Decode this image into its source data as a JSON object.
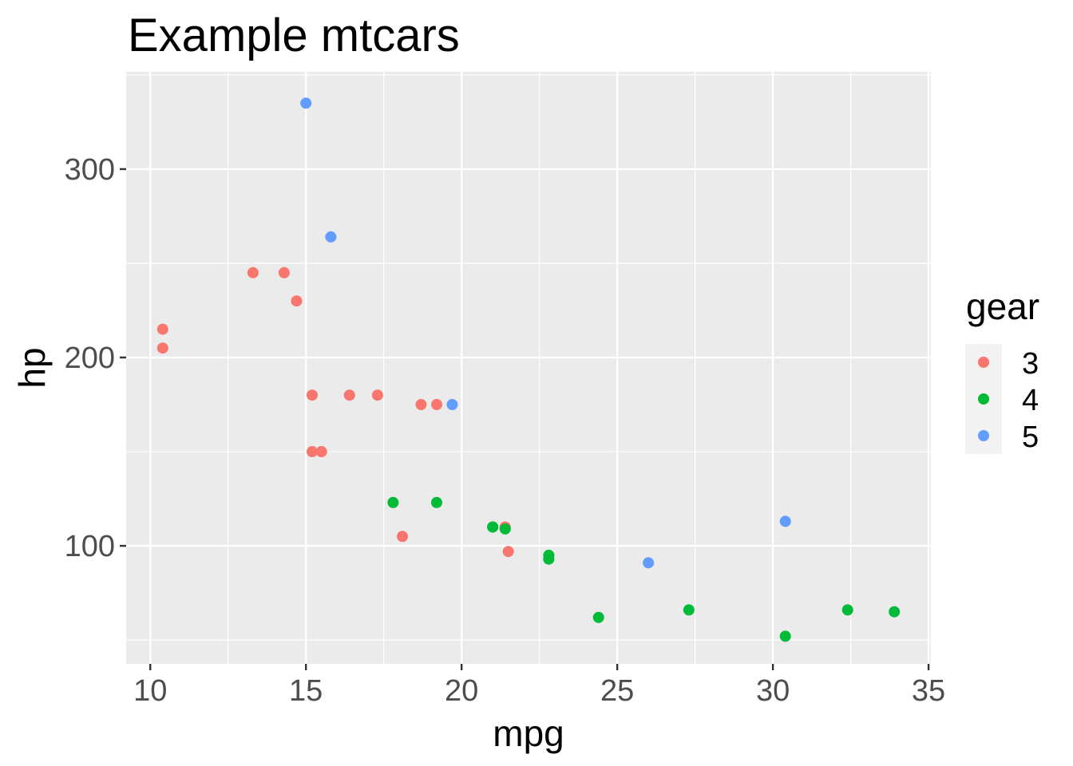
{
  "chart_data": {
    "type": "scatter",
    "title": "Example mtcars",
    "xlabel": "mpg",
    "ylabel": "hp",
    "xlim": [
      9.225,
      35.075
    ],
    "ylim": [
      37.35,
      351.65
    ],
    "x_ticks": [
      10,
      15,
      20,
      25,
      30,
      35
    ],
    "y_ticks": [
      100,
      200,
      300
    ],
    "x_tick_labels": [
      "10",
      "15",
      "20",
      "25",
      "30",
      "35"
    ],
    "y_tick_labels": [
      "100",
      "200",
      "300"
    ],
    "grid": true,
    "background": "#EBEBEB",
    "legend": {
      "title": "gear",
      "position": "right",
      "entries": [
        {
          "label": "3",
          "color": "#F8766D"
        },
        {
          "label": "4",
          "color": "#00BA38"
        },
        {
          "label": "5",
          "color": "#619CFF"
        }
      ]
    },
    "series": [
      {
        "name": "3",
        "color": "#F8766D",
        "points": [
          [
            21.4,
            110
          ],
          [
            18.7,
            175
          ],
          [
            18.1,
            105
          ],
          [
            14.3,
            245
          ],
          [
            16.4,
            180
          ],
          [
            17.3,
            180
          ],
          [
            15.2,
            180
          ],
          [
            10.4,
            205
          ],
          [
            10.4,
            215
          ],
          [
            14.7,
            230
          ],
          [
            21.5,
            97
          ],
          [
            15.5,
            150
          ],
          [
            15.2,
            150
          ],
          [
            13.3,
            245
          ],
          [
            19.2,
            175
          ]
        ]
      },
      {
        "name": "4",
        "color": "#00BA38",
        "points": [
          [
            21.0,
            110
          ],
          [
            21.0,
            110
          ],
          [
            22.8,
            93
          ],
          [
            24.4,
            62
          ],
          [
            22.8,
            95
          ],
          [
            19.2,
            123
          ],
          [
            17.8,
            123
          ],
          [
            32.4,
            66
          ],
          [
            30.4,
            52
          ],
          [
            33.9,
            65
          ],
          [
            27.3,
            66
          ],
          [
            21.4,
            109
          ]
        ]
      },
      {
        "name": "5",
        "color": "#619CFF",
        "points": [
          [
            26.0,
            91
          ],
          [
            30.4,
            113
          ],
          [
            15.8,
            264
          ],
          [
            19.7,
            175
          ],
          [
            15.0,
            335
          ]
        ]
      }
    ]
  }
}
